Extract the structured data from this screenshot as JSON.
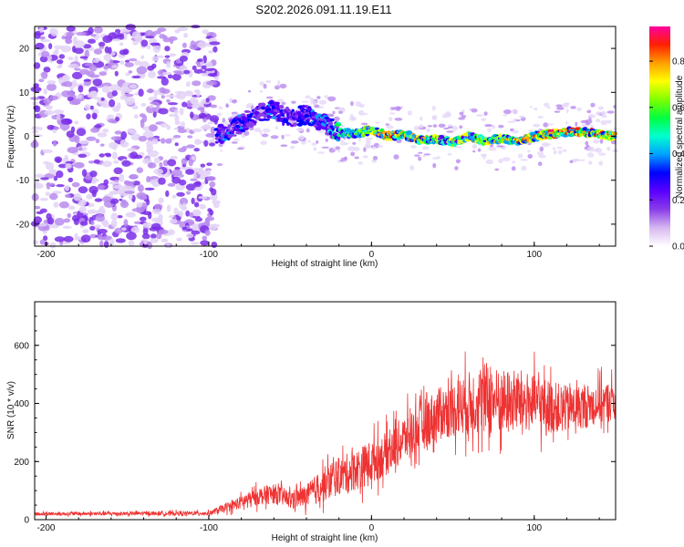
{
  "title": "S202.2026.091.11.19.E11",
  "chart_data": [
    {
      "type": "heatmap",
      "name": "spectrogram",
      "xlabel": "Height of straight line (km)",
      "ylabel": "Frequency (Hz)",
      "xlim": [
        -207,
        150
      ],
      "ylim": [
        -25,
        25
      ],
      "xticks": [
        -200,
        -100,
        0,
        100
      ],
      "yticks": [
        -20,
        -10,
        0,
        10,
        20
      ],
      "colorbar": {
        "label": "Normalized spectral amplitude",
        "range": [
          0,
          0.95
        ],
        "ticks": [
          0.0,
          0.2,
          0.4,
          0.6,
          0.8
        ],
        "colors": [
          "#ffffff",
          "#d8b8f0",
          "#8a3ee8",
          "#5a00ff",
          "#0000ff",
          "#00a0ff",
          "#00ffd0",
          "#00ff40",
          "#80ff00",
          "#ffff00",
          "#ffa000",
          "#ff2000",
          "#ff00a0"
        ]
      },
      "ridge": {
        "x": [
          -95,
          -90,
          -80,
          -70,
          -60,
          -50,
          -40,
          -35,
          -30,
          -20,
          -10,
          0,
          10,
          20,
          30,
          40,
          50,
          60,
          70,
          80,
          90,
          100,
          110,
          120,
          130,
          140,
          150
        ],
        "freq": [
          0,
          1,
          3,
          5,
          6,
          4,
          5,
          4,
          3,
          1,
          0.5,
          1.5,
          0,
          0.5,
          -1,
          -0.5,
          -1.5,
          0,
          -1,
          -0.5,
          -1,
          0,
          0.5,
          1,
          1,
          0.5,
          0
        ],
        "amp": [
          0.3,
          0.35,
          0.35,
          0.3,
          0.35,
          0.3,
          0.3,
          0.35,
          0.4,
          0.55,
          0.6,
          0.7,
          0.85,
          0.75,
          0.8,
          0.7,
          0.65,
          0.7,
          0.7,
          0.75,
          0.8,
          0.8,
          0.85,
          0.85,
          0.8,
          0.8,
          0.8
        ]
      },
      "noise_region": [
        -207,
        -95
      ]
    },
    {
      "type": "line",
      "name": "snr",
      "xlabel": "Height of straight line (km)",
      "ylabel": "SNR (10 * v/v)",
      "xlim": [
        -207,
        150
      ],
      "ylim": [
        0,
        750
      ],
      "xticks": [
        -200,
        -100,
        0,
        100
      ],
      "yticks": [
        0,
        200,
        400,
        600
      ],
      "color": "#ee3333",
      "envelope": {
        "x": [
          -207,
          -100,
          -90,
          -80,
          -70,
          -60,
          -50,
          -40,
          -30,
          -20,
          -10,
          0,
          10,
          20,
          30,
          40,
          50,
          60,
          70,
          80,
          90,
          100,
          110,
          120,
          130,
          140,
          150
        ],
        "mean": [
          20,
          22,
          40,
          60,
          80,
          90,
          70,
          80,
          120,
          150,
          170,
          200,
          230,
          280,
          320,
          360,
          380,
          400,
          420,
          400,
          410,
          400,
          390,
          380,
          390,
          400,
          410
        ],
        "spread": [
          12,
          14,
          30,
          45,
          60,
          70,
          60,
          80,
          120,
          130,
          140,
          150,
          150,
          160,
          170,
          180,
          190,
          220,
          250,
          230,
          220,
          200,
          180,
          160,
          150,
          140,
          140
        ]
      }
    }
  ]
}
